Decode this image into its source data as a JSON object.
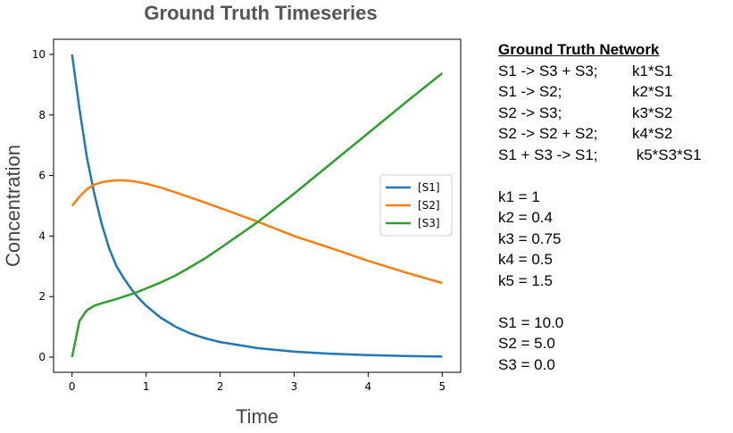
{
  "chart_data": {
    "type": "line",
    "title": "Ground Truth Timeseries",
    "xlabel": "Time",
    "ylabel": "Concentration",
    "xlim": [
      -0.25,
      5.25
    ],
    "ylim": [
      -0.5,
      10.5
    ],
    "xticks": [
      0,
      1,
      2,
      3,
      4,
      5
    ],
    "yticks": [
      0,
      2,
      4,
      6,
      8,
      10
    ],
    "legend": "center-right",
    "grid": false,
    "x": [
      0,
      0.1,
      0.2,
      0.3,
      0.4,
      0.5,
      0.6,
      0.7,
      0.8,
      0.9,
      1.0,
      1.2,
      1.4,
      1.6,
      1.8,
      2.0,
      2.5,
      3.0,
      3.5,
      4.0,
      4.5,
      5.0
    ],
    "series": [
      {
        "name": "[S1]",
        "color": "#1f77b4",
        "values": [
          10.0,
          8.2,
          6.6,
          5.4,
          4.4,
          3.6,
          3.0,
          2.6,
          2.25,
          1.95,
          1.7,
          1.3,
          1.0,
          0.78,
          0.62,
          0.5,
          0.3,
          0.18,
          0.11,
          0.07,
          0.04,
          0.02
        ]
      },
      {
        "name": "[S2]",
        "color": "#ff7f0e",
        "values": [
          5.0,
          5.3,
          5.55,
          5.7,
          5.78,
          5.82,
          5.84,
          5.84,
          5.82,
          5.78,
          5.73,
          5.6,
          5.44,
          5.27,
          5.1,
          4.93,
          4.48,
          4.0,
          3.6,
          3.18,
          2.8,
          2.45
        ]
      },
      {
        "name": "[S3]",
        "color": "#2ca02c",
        "values": [
          0.0,
          1.2,
          1.55,
          1.7,
          1.78,
          1.85,
          1.92,
          2.0,
          2.08,
          2.17,
          2.27,
          2.47,
          2.7,
          2.98,
          3.27,
          3.6,
          4.45,
          5.4,
          6.4,
          7.4,
          8.4,
          9.38
        ]
      }
    ]
  },
  "network": {
    "title": "Ground Truth Network",
    "reactions": [
      {
        "reaction": "S1 -> S3 + S3;",
        "rate": "k1*S1"
      },
      {
        "reaction": "S1 -> S2;",
        "rate": "k2*S1"
      },
      {
        "reaction": "S2 -> S3;",
        "rate": "k3*S2"
      },
      {
        "reaction": "S2 -> S2 + S2;",
        "rate": "k4*S2"
      },
      {
        "reaction": "S1 + S3 -> S1;",
        "rate": " k5*S3*S1"
      }
    ],
    "parameters": [
      "k1 = 1",
      "k2 = 0.4",
      "k3 = 0.75",
      "k4 = 0.5",
      "k5 = 1.5"
    ],
    "initial": [
      "S1 = 10.0",
      "S2 = 5.0",
      "S3 = 0.0"
    ]
  }
}
